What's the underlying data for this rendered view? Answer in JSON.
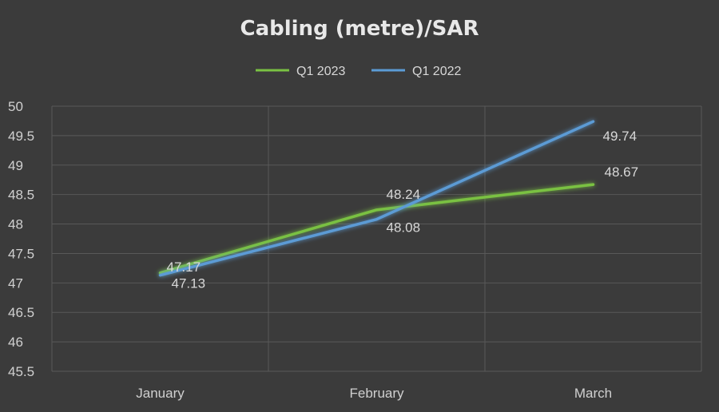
{
  "chart_data": {
    "type": "line",
    "title": "Cabling (metre)/SAR",
    "categories": [
      "January",
      "February",
      "March"
    ],
    "ylim": [
      45.5,
      50
    ],
    "yticks": [
      45.5,
      46,
      46.5,
      47,
      47.5,
      48,
      48.5,
      49,
      49.5,
      50
    ],
    "ytick_labels": [
      "45.5",
      "46",
      "46.5",
      "47",
      "47.5",
      "48",
      "48.5",
      "49",
      "49.5",
      "50"
    ],
    "grid": true,
    "legend_position": "top-center",
    "series": [
      {
        "name": "Q1 2023",
        "values": [
          47.17,
          48.24,
          48.67
        ],
        "labels": [
          "47.17",
          "48.24",
          "48.67"
        ],
        "color": "#7ac143"
      },
      {
        "name": "Q1 2022",
        "values": [
          47.13,
          48.08,
          49.74
        ],
        "labels": [
          "47.13",
          "48.08",
          "49.74"
        ],
        "color": "#5b9bd5"
      }
    ]
  }
}
